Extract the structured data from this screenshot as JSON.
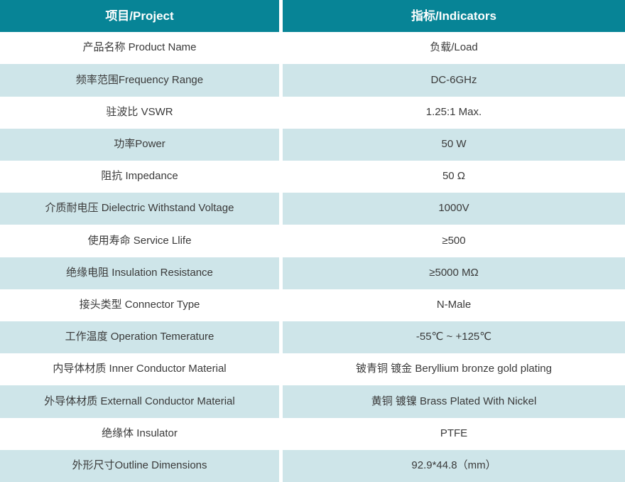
{
  "table": {
    "title": "Product specification table",
    "headers": {
      "project": "项目/Project",
      "indicators": "指标/Indicators"
    },
    "rows": [
      {
        "project": "产品名称 Product Name",
        "indicator": "负载/Load"
      },
      {
        "project": "频率范围Frequency Range",
        "indicator": "DC-6GHz"
      },
      {
        "project": "驻波比 VSWR",
        "indicator": "1.25:1 Max."
      },
      {
        "project": "功率Power",
        "indicator": "50 W"
      },
      {
        "project": "阻抗 Impedance",
        "indicator": "50 Ω"
      },
      {
        "project": "介质耐电压 Dielectric Withstand Voltage",
        "indicator": "1000V"
      },
      {
        "project": "使用寿命 Service Llife",
        "indicator": "≥500"
      },
      {
        "project": "绝缘电阻 Insulation Resistance",
        "indicator": "≥5000 MΩ"
      },
      {
        "project": "接头类型 Connector Type",
        "indicator": "N-Male"
      },
      {
        "project": "工作温度 Operation Temerature",
        "indicator": "-55℃ ~ +125℃"
      },
      {
        "project": "内导体材质 Inner Conductor Material",
        "indicator": "铍青铜 镀金 Beryllium bronze gold plating"
      },
      {
        "project": "外导体材质 Externall Conductor Material",
        "indicator": "黄铜 镀镍 Brass Plated With Nickel"
      },
      {
        "project": "绝缘体 Insulator",
        "indicator": "PTFE"
      },
      {
        "project": "外形尺寸Outline Dimensions",
        "indicator": "92.9*44.8（mm）"
      }
    ]
  },
  "colors": {
    "header_bg": "#078496",
    "header_text": "#ffffff",
    "row_bg": "#ffffff",
    "row_alt_bg": "#cee5e9",
    "cell_text": "#3a3a3a",
    "gutter": "#ffffff"
  }
}
